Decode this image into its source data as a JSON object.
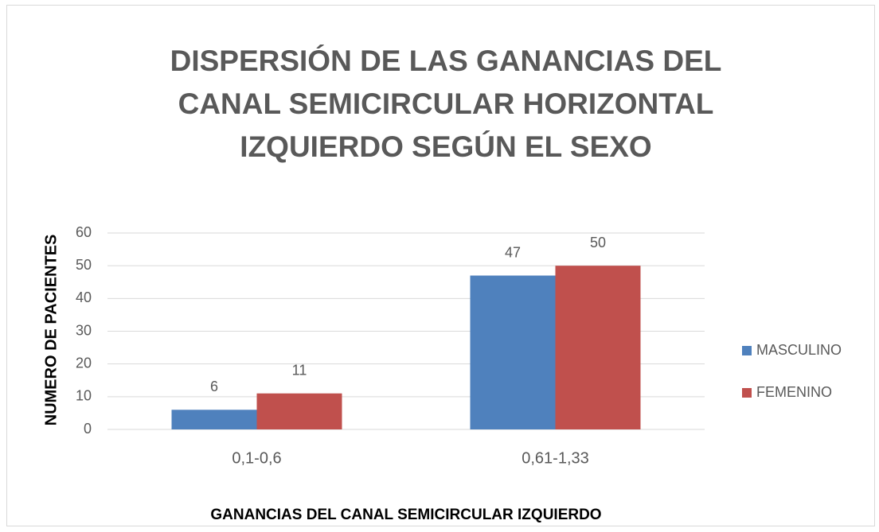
{
  "chart_data": {
    "type": "bar",
    "title": "DISPERSIÓN DE LAS GANANCIAS DEL CANAL SEMICIRCULAR HORIZONTAL IZQUIERDO SEGÚN EL SEXO",
    "x_label": "GANANCIAS DEL CANAL SEMICIRCULAR IZQUIERDO",
    "y_label": "NUMERO DE PACIENTES",
    "categories": [
      "0,1-0,6",
      "0,61-1,33"
    ],
    "series": [
      {
        "name": "MASCULINO",
        "color": "#4f81bd",
        "values": [
          6,
          47
        ]
      },
      {
        "name": "FEMENINO",
        "color": "#c0504d",
        "values": [
          11,
          50
        ]
      }
    ],
    "ylim": [
      0,
      60
    ],
    "yticks": [
      0,
      10,
      20,
      30,
      40,
      50,
      60
    ],
    "grid": true,
    "legend": "right"
  }
}
